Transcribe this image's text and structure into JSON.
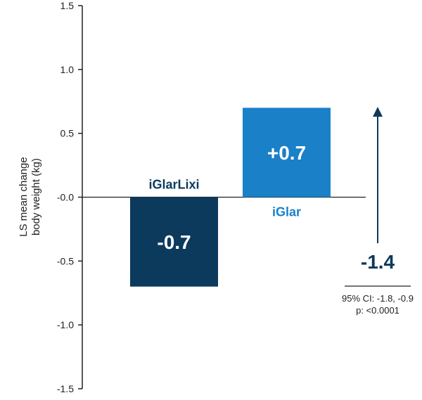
{
  "chart_data": {
    "type": "bar",
    "title": "",
    "xlabel": "",
    "ylabel": [
      "LS mean change",
      "body weight (kg)"
    ],
    "ylim": [
      -1.5,
      1.5
    ],
    "yticks": [
      1.5,
      1.0,
      0.5,
      0.0,
      -0.5,
      -1.0,
      -1.5
    ],
    "ytick_labels": [
      "1.5",
      "1.0",
      "0.5",
      "-0.0",
      "-0.5",
      "-1.0",
      "-1.5"
    ],
    "grid": false,
    "categories": [
      "iGlarLixi",
      "iGlar"
    ],
    "values": [
      -0.7,
      0.7
    ],
    "value_labels": [
      "-0.7",
      "+0.7"
    ],
    "colors": [
      "#0b3a5c",
      "#1a80c8"
    ],
    "difference": {
      "value": -1.4,
      "label": "-1.4",
      "ci": "95% CI: -1.8, -0.9",
      "p": "p: <0.0001",
      "color": "#0b3a5c"
    }
  }
}
